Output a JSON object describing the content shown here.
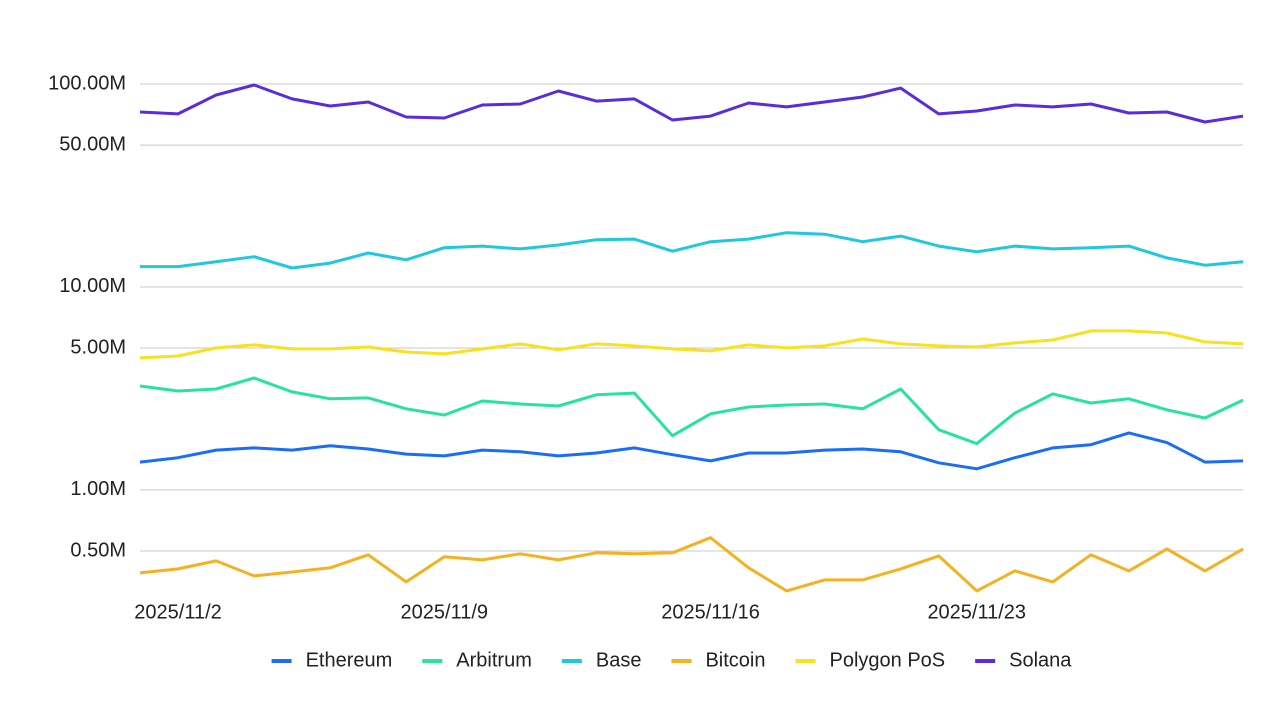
{
  "chart_data": {
    "type": "line",
    "log_scale": true,
    "grid": true,
    "legend": "bottom",
    "categories": [
      null,
      "2025/11/2",
      null,
      null,
      null,
      null,
      null,
      null,
      "2025/11/9",
      null,
      null,
      null,
      null,
      null,
      null,
      "2025/11/16",
      null,
      null,
      null,
      null,
      null,
      null,
      "2025/11/23",
      null,
      null,
      null,
      null,
      null,
      null,
      null
    ],
    "ylim": [
      300000,
      100000000
    ],
    "yticks": [
      {
        "value": 100000000,
        "label": "100.00M"
      },
      {
        "value": 50000000,
        "label": "50.00M"
      },
      {
        "value": 10000000,
        "label": "10.00M"
      },
      {
        "value": 5000000,
        "label": "5.00M"
      },
      {
        "value": 1000000,
        "label": "1.00M"
      },
      {
        "value": 500000,
        "label": "0.50M"
      }
    ],
    "series": [
      {
        "name": "Ethereum",
        "color": "#1a6ef5",
        "values": [
          1370000,
          1440000,
          1570000,
          1610000,
          1570000,
          1650000,
          1590000,
          1500000,
          1470000,
          1570000,
          1540000,
          1470000,
          1520000,
          1610000,
          1490000,
          1390000,
          1520000,
          1520000,
          1570000,
          1590000,
          1540000,
          1360000,
          1270000,
          1440000,
          1610000,
          1670000,
          1910000,
          1710000,
          1370000,
          1390000
        ]
      },
      {
        "name": "Arbitrum",
        "color": "#26e3a1",
        "values": [
          3250000,
          3070000,
          3140000,
          3560000,
          3040000,
          2810000,
          2840000,
          2510000,
          2340000,
          2740000,
          2650000,
          2590000,
          2940000,
          3000000,
          1850000,
          2370000,
          2560000,
          2620000,
          2650000,
          2510000,
          3140000,
          1980000,
          1690000,
          2390000,
          2970000,
          2680000,
          2810000,
          2480000,
          2260000,
          2770000
        ]
      },
      {
        "name": "Base",
        "color": "#1ec8e0",
        "values": [
          12600000,
          12600000,
          13300000,
          14100000,
          12400000,
          13100000,
          14700000,
          13600000,
          15600000,
          15900000,
          15400000,
          16100000,
          17100000,
          17200000,
          15000000,
          16700000,
          17200000,
          18500000,
          18200000,
          16700000,
          17800000,
          15900000,
          14900000,
          15900000,
          15400000,
          15600000,
          15900000,
          13900000,
          12800000,
          13300000
        ]
      },
      {
        "name": "Bitcoin",
        "color": "#f5b120",
        "values": [
          390000,
          408000,
          447000,
          377000,
          394000,
          413000,
          479000,
          352000,
          468000,
          452000,
          484000,
          452000,
          490000,
          484000,
          490000,
          581000,
          413000,
          318000,
          360000,
          360000,
          408000,
          473000,
          318000,
          399000,
          352000,
          479000,
          399000,
          512000,
          399000,
          512000
        ]
      },
      {
        "name": "Polygon PoS",
        "color": "#f9e11e",
        "values": [
          4470000,
          4570000,
          5010000,
          5180000,
          4950000,
          4950000,
          5060000,
          4780000,
          4680000,
          4950000,
          5240000,
          4900000,
          5240000,
          5120000,
          4950000,
          4840000,
          5180000,
          5010000,
          5120000,
          5540000,
          5240000,
          5120000,
          5060000,
          5300000,
          5480000,
          6070000,
          6070000,
          5930000,
          5360000,
          5240000
        ]
      },
      {
        "name": "Solana",
        "color": "#5b2bde",
        "values": [
          72800000,
          71200000,
          88300000,
          98900000,
          84400000,
          77900000,
          81500000,
          68800000,
          68000000,
          78800000,
          79700000,
          92400000,
          82400000,
          84400000,
          66500000,
          69500000,
          80600000,
          77100000,
          81500000,
          86300000,
          95500000,
          71200000,
          73600000,
          78800000,
          77100000,
          79700000,
          72000000,
          72800000,
          65000000,
          69500000
        ]
      }
    ]
  }
}
